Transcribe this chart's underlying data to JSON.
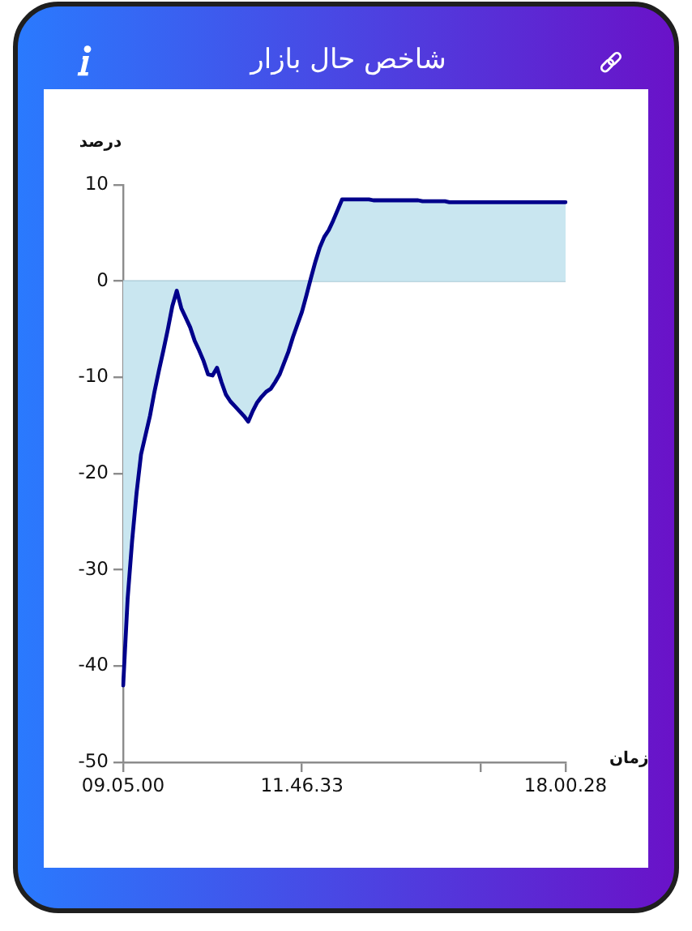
{
  "chart_data": {
    "type": "area",
    "title": "شاخص حال بازار",
    "xlabel": "زمان",
    "ylabel": "درصد",
    "categories": [
      "09.05.00",
      null,
      null,
      null,
      null,
      null,
      null,
      null,
      null,
      null,
      null,
      null,
      null,
      null,
      null,
      null,
      null,
      null,
      null,
      null,
      null,
      null,
      null,
      null,
      null,
      null,
      null,
      null,
      null,
      null,
      null,
      null,
      null,
      null,
      null,
      null,
      null,
      null,
      null,
      null,
      "11.46.33",
      null,
      null,
      null,
      null,
      null,
      null,
      null,
      null,
      null,
      null,
      null,
      null,
      null,
      null,
      null,
      null,
      null,
      null,
      null,
      null,
      null,
      null,
      null,
      null,
      null,
      null,
      null,
      null,
      null,
      null,
      null,
      null,
      null,
      null,
      null,
      null,
      null,
      null,
      null,
      null,
      null,
      null,
      null,
      null,
      null,
      null,
      null,
      null,
      null,
      null,
      null,
      null,
      null,
      null,
      null,
      null,
      null,
      null,
      "18.00.28"
    ],
    "series": [
      {
        "color": "#00008b",
        "values": [
          -42,
          -33,
          -27,
          -22,
          -18,
          -16,
          -14,
          -11.5,
          -9.3,
          -7.2,
          -5,
          -2.6,
          -1,
          -2.8,
          -3.8,
          -4.8,
          -6.2,
          -7.2,
          -8.3,
          -9.7,
          -9.8,
          -9,
          -10.5,
          -11.8,
          -12.5,
          -13,
          -13.5,
          -14,
          -14.6,
          -13.5,
          -12.6,
          -12,
          -11.5,
          -11.2,
          -10.5,
          -9.7,
          -8.5,
          -7.3,
          -5.8,
          -4.5,
          -3.2,
          -1.5,
          0.3,
          2,
          3.5,
          4.6,
          5.3,
          6.3,
          7.4,
          8.5,
          8.5,
          8.5,
          8.5,
          8.5,
          8.5,
          8.5,
          8.4,
          8.4,
          8.4,
          8.4,
          8.4,
          8.4,
          8.4,
          8.4,
          8.4,
          8.4,
          8.4,
          8.3,
          8.3,
          8.3,
          8.3,
          8.3,
          8.3,
          8.2,
          8.2,
          8.2,
          8.2,
          8.2,
          8.2,
          8.2,
          8.2,
          8.2,
          8.2,
          8.2,
          8.2,
          8.2,
          8.2,
          8.2,
          8.2,
          8.2,
          8.2,
          8.2,
          8.2,
          8.2,
          8.2,
          8.2,
          8.2,
          8.2,
          8.2,
          8.2
        ]
      }
    ],
    "ylim": [
      -50,
      10
    ],
    "yticks": [
      -50,
      -40,
      -30,
      -20,
      -10,
      0,
      10
    ],
    "ref_lines": [
      {
        "axis": "y",
        "value": 0,
        "color": "#a9c9d6"
      }
    ],
    "grid": false,
    "legend": false,
    "marker": "none"
  }
}
